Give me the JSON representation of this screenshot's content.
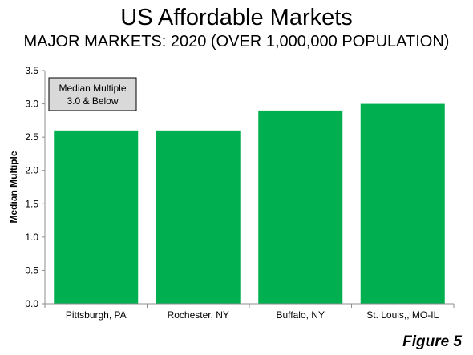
{
  "chart_data": {
    "type": "bar",
    "title": "US Affordable Markets",
    "subtitle": "MAJOR MARKETS: 2020 (OVER 1,000,000 POPULATION)",
    "ylabel": "Median Multiple",
    "xlabel": "",
    "categories": [
      "Pittsburgh, PA",
      "Rochester, NY",
      "Buffalo, NY",
      "St. Louis,, MO-IL"
    ],
    "values": [
      2.6,
      2.6,
      2.9,
      3.0
    ],
    "ylim": [
      0,
      3.5
    ],
    "yticks": [
      "0.0",
      "0.5",
      "1.0",
      "1.5",
      "2.0",
      "2.5",
      "3.0",
      "3.5"
    ],
    "bar_color": "#00b050",
    "grid": false,
    "annotation": {
      "line1": "Median Multiple",
      "line2": "3.0 & Below"
    },
    "figure_label": "Figure 5"
  }
}
